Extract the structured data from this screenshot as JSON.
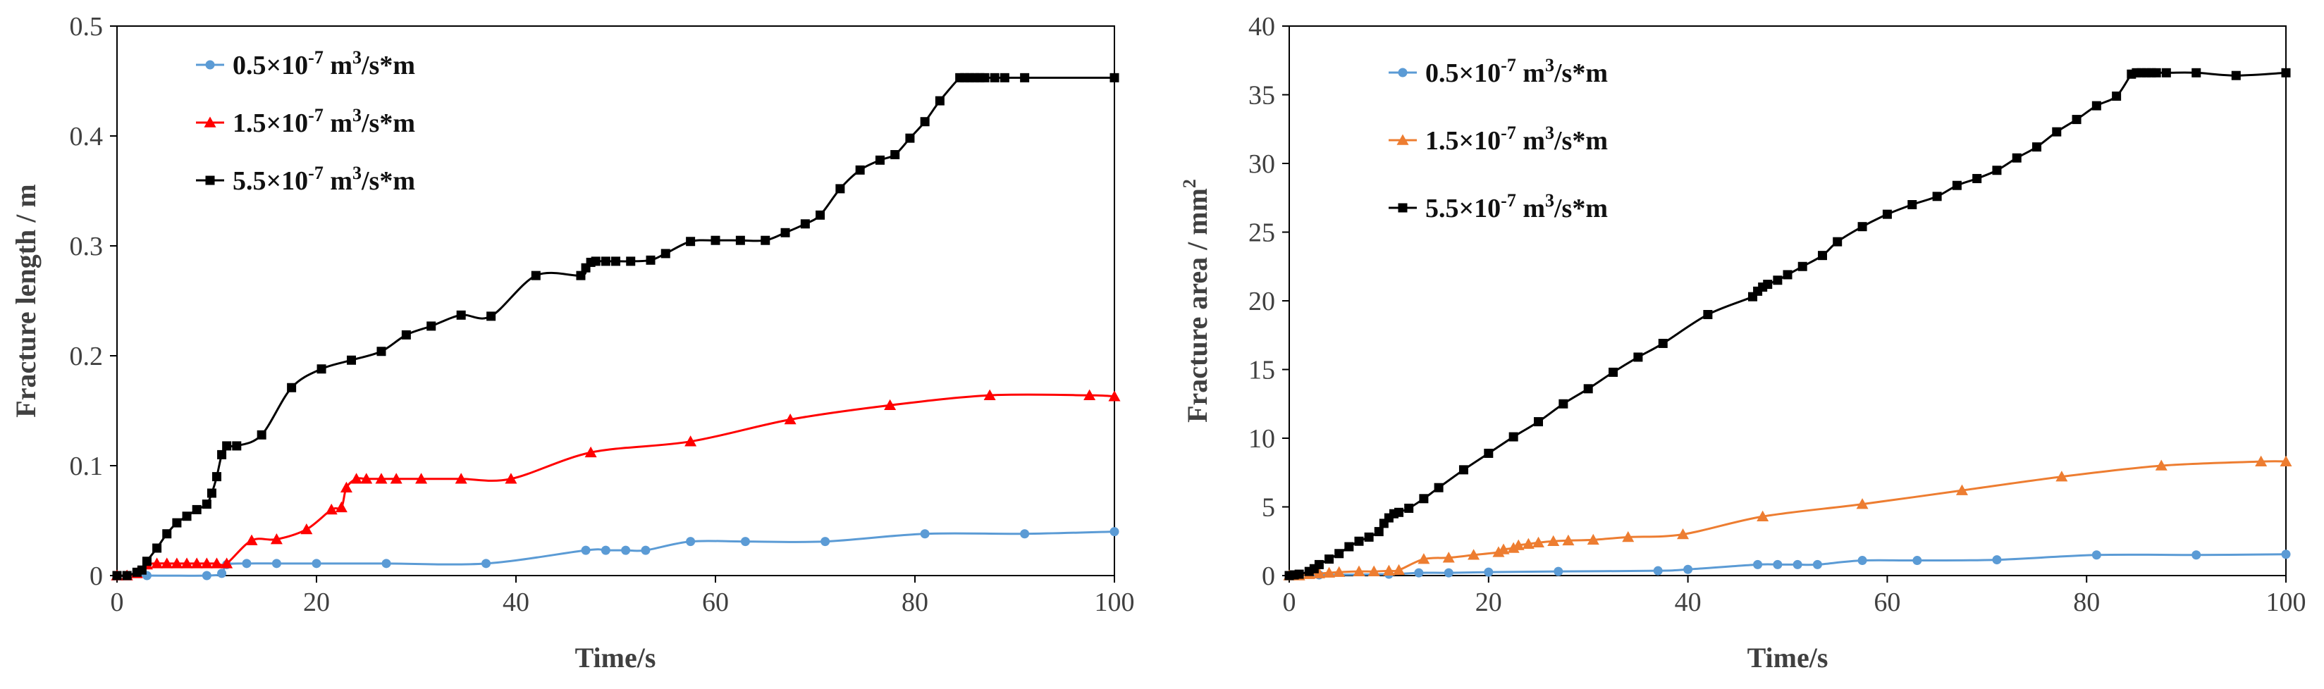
{
  "chart_data": [
    {
      "type": "line",
      "title": "",
      "xlabel": "Time/s",
      "ylabel": "Fracture length / m",
      "xlim": [
        0,
        100
      ],
      "ylim": [
        0,
        0.5
      ],
      "xticks": [
        "0",
        "20",
        "40",
        "60",
        "80",
        "100"
      ],
      "yticks": [
        "0",
        "0.1",
        "0.2",
        "0.3",
        "0.4",
        "0.5"
      ],
      "legend_position": "top-left",
      "series": [
        {
          "name": "0.5×10-7 m3/s*m",
          "legend": {
            "base": "0.5×10",
            "exp": "-7",
            "unit1": " m",
            "unit_exp": "3",
            "unit2": "/s*m"
          },
          "color": "#5b9bd5",
          "marker": "circle",
          "x": [
            0,
            3,
            9,
            10.5,
            11,
            13,
            16,
            20,
            27,
            37,
            47,
            49,
            51,
            53,
            57.5,
            63,
            71,
            81,
            91,
            100
          ],
          "y": [
            0,
            0,
            0,
            0.002,
            0.01,
            0.011,
            0.011,
            0.011,
            0.011,
            0.011,
            0.023,
            0.023,
            0.023,
            0.023,
            0.031,
            0.031,
            0.031,
            0.038,
            0.038,
            0.04
          ]
        },
        {
          "name": "1.5×10-7 m3/s*m",
          "legend": {
            "base": "1.5×10",
            "exp": "-7",
            "unit1": " m",
            "unit_exp": "3",
            "unit2": "/s*m"
          },
          "color": "#ff0000",
          "marker": "triangle",
          "x": [
            0,
            1,
            2,
            3,
            4,
            5,
            6,
            7,
            8,
            9,
            10,
            11,
            13.5,
            16,
            19,
            21.5,
            22.5,
            23,
            24,
            25,
            26.5,
            28,
            30.5,
            34.5,
            39.5,
            47.5,
            57.5,
            67.5,
            77.5,
            87.5,
            97.5,
            100
          ],
          "y": [
            0,
            0,
            0.002,
            0.01,
            0.011,
            0.011,
            0.011,
            0.011,
            0.011,
            0.011,
            0.011,
            0.011,
            0.032,
            0.033,
            0.042,
            0.06,
            0.062,
            0.08,
            0.088,
            0.088,
            0.088,
            0.088,
            0.088,
            0.088,
            0.088,
            0.112,
            0.122,
            0.142,
            0.155,
            0.164,
            0.164,
            0.163
          ]
        },
        {
          "name": "5.5×10-7 m3/s*m",
          "legend": {
            "base": "5.5×10",
            "exp": "-7",
            "unit1": " m",
            "unit_exp": "3",
            "unit2": "/s*m"
          },
          "color": "#000000",
          "marker": "square",
          "x": [
            0,
            1,
            2,
            2.5,
            3,
            4,
            5,
            6,
            7,
            8,
            9,
            9.5,
            10,
            10.5,
            11,
            12,
            14.5,
            17.5,
            20.5,
            23.5,
            26.5,
            29,
            31.5,
            34.5,
            37.5,
            42,
            46.5,
            47,
            47.5,
            48,
            49,
            50,
            51.5,
            53.5,
            55,
            57.5,
            60,
            62.5,
            65,
            67,
            69,
            70.5,
            72.5,
            74.5,
            76.5,
            78,
            79.5,
            81,
            82.5,
            84.5,
            85,
            85.5,
            86,
            86.5,
            87,
            88,
            89,
            91,
            100
          ],
          "y": [
            0,
            0,
            0.003,
            0.005,
            0.013,
            0.025,
            0.038,
            0.048,
            0.054,
            0.06,
            0.065,
            0.075,
            0.09,
            0.11,
            0.118,
            0.118,
            0.128,
            0.171,
            0.188,
            0.196,
            0.204,
            0.219,
            0.227,
            0.237,
            0.236,
            0.273,
            0.273,
            0.28,
            0.285,
            0.286,
            0.286,
            0.286,
            0.286,
            0.287,
            0.293,
            0.304,
            0.305,
            0.305,
            0.305,
            0.312,
            0.32,
            0.328,
            0.352,
            0.369,
            0.378,
            0.383,
            0.398,
            0.413,
            0.432,
            0.453,
            0.453,
            0.453,
            0.453,
            0.453,
            0.453,
            0.453,
            0.453,
            0.453,
            0.453
          ]
        }
      ]
    },
    {
      "type": "line",
      "title": "",
      "xlabel": "Time/s",
      "ylabel": "Fracture area / mm",
      "ylabel_exp": "2",
      "xlim": [
        0,
        100
      ],
      "ylim": [
        0,
        40
      ],
      "xticks": [
        "0",
        "20",
        "40",
        "60",
        "80",
        "100"
      ],
      "yticks": [
        "0",
        "5",
        "10",
        "15",
        "20",
        "25",
        "30",
        "35",
        "40"
      ],
      "legend_position": "top-left",
      "series": [
        {
          "name": "0.5×10-7 m3/s*m",
          "legend": {
            "base": "0.5×10",
            "exp": "-7",
            "unit1": " m",
            "unit_exp": "3",
            "unit2": "/s*m"
          },
          "color": "#5b9bd5",
          "marker": "circle",
          "x": [
            0,
            3,
            10,
            13,
            16,
            20,
            27,
            37,
            40,
            47,
            49,
            51,
            53,
            57.5,
            63,
            71,
            81,
            91,
            100
          ],
          "y": [
            0,
            0.05,
            0.1,
            0.2,
            0.2,
            0.25,
            0.3,
            0.35,
            0.45,
            0.8,
            0.8,
            0.8,
            0.8,
            1.1,
            1.1,
            1.15,
            1.5,
            1.5,
            1.55
          ]
        },
        {
          "name": "1.5×10-7 m3/s*m",
          "legend": {
            "base": "1.5×10",
            "exp": "-7",
            "unit1": " m",
            "unit_exp": "3",
            "unit2": "/s*m"
          },
          "color": "#ed7d31",
          "marker": "triangle",
          "x": [
            0,
            1,
            2,
            3,
            4,
            5,
            7,
            8.5,
            10,
            11,
            13.5,
            16,
            18.5,
            21,
            21.5,
            22.5,
            23,
            24,
            25,
            26.5,
            28,
            30.5,
            34,
            39.5,
            47.5,
            57.5,
            67.5,
            77.5,
            87.5,
            97.5,
            100
          ],
          "y": [
            0,
            0,
            0.1,
            0.15,
            0.2,
            0.25,
            0.3,
            0.3,
            0.35,
            0.4,
            1.2,
            1.3,
            1.5,
            1.7,
            1.9,
            2.0,
            2.2,
            2.3,
            2.4,
            2.5,
            2.55,
            2.6,
            2.8,
            3.0,
            4.3,
            5.2,
            6.2,
            7.2,
            8.0,
            8.3,
            8.3
          ]
        },
        {
          "name": "5.5×10-7 m3/s*m",
          "legend": {
            "base": "5.5×10",
            "exp": "-7",
            "unit1": " m",
            "unit_exp": "3",
            "unit2": "/s*m"
          },
          "color": "#000000",
          "marker": "square",
          "x": [
            0,
            0.5,
            1,
            2,
            2.5,
            3,
            4,
            5,
            6,
            7,
            8,
            9,
            9.5,
            10,
            10.5,
            11,
            12,
            13.5,
            15,
            17.5,
            20,
            22.5,
            25,
            27.5,
            30,
            32.5,
            35,
            37.5,
            42,
            46.5,
            47,
            47.5,
            48,
            49,
            50,
            51.5,
            53.5,
            55,
            57.5,
            60,
            62.5,
            65,
            67,
            69,
            71,
            73,
            75,
            77,
            79,
            81,
            83,
            84.5,
            85,
            85.5,
            86,
            86.5,
            87,
            88,
            91,
            95,
            100
          ],
          "y": [
            0,
            0.05,
            0.1,
            0.3,
            0.5,
            0.8,
            1.2,
            1.6,
            2.1,
            2.5,
            2.8,
            3.2,
            3.8,
            4.2,
            4.5,
            4.6,
            4.9,
            5.6,
            6.4,
            7.7,
            8.9,
            10.1,
            11.2,
            12.5,
            13.6,
            14.8,
            15.9,
            16.9,
            19.0,
            20.3,
            20.7,
            21.0,
            21.2,
            21.5,
            21.9,
            22.5,
            23.3,
            24.3,
            25.4,
            26.3,
            27.0,
            27.6,
            28.4,
            28.9,
            29.5,
            30.4,
            31.2,
            32.3,
            33.2,
            34.2,
            34.9,
            36.5,
            36.6,
            36.6,
            36.6,
            36.6,
            36.6,
            36.6,
            36.6,
            36.4,
            36.6
          ]
        }
      ]
    }
  ]
}
